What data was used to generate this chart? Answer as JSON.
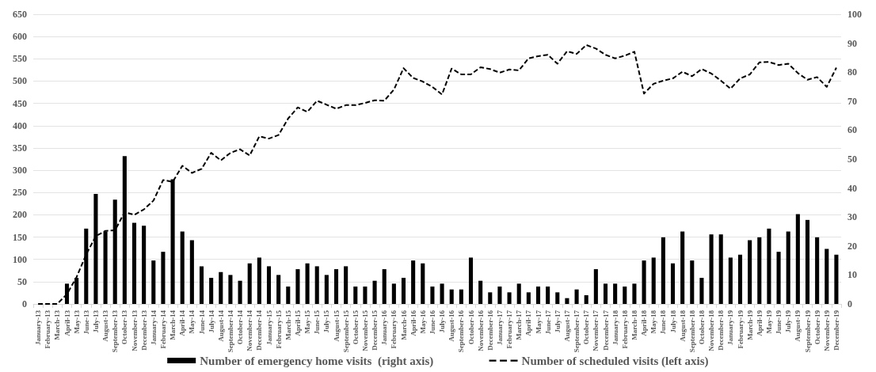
{
  "chart_data": {
    "type": "bar",
    "categories": [
      "January-13",
      "February-13",
      "March-13",
      "April-13",
      "May-13",
      "June-13",
      "July-13",
      "August-13",
      "September-13",
      "October-13",
      "November-13",
      "December-13",
      "January-14",
      "February-14",
      "March-14",
      "April-14",
      "May-14",
      "June-14",
      "July-14",
      "August-14",
      "September-14",
      "October-14",
      "November-14",
      "December-14",
      "January-15",
      "February-15",
      "March-15",
      "April-15",
      "May-15",
      "June-15",
      "July-15",
      "August-15",
      "September-15",
      "October-15",
      "November-15",
      "December-15",
      "January-16",
      "February-16",
      "March-16",
      "April-16",
      "May-16",
      "June-16",
      "July-16",
      "August-16",
      "September-16",
      "October-16",
      "November-16",
      "December-16",
      "January-17",
      "February-17",
      "March-17",
      "April-17",
      "May-17",
      "June-17",
      "July-17",
      "August-17",
      "September-17",
      "October-17",
      "November-17",
      "December-17",
      "January-18",
      "February-18",
      "March-18",
      "April-18",
      "May-18",
      "June-18",
      "July-18",
      "August-18",
      "September-18",
      "October-18",
      "November-18",
      "December-18",
      "January-19",
      "February-19",
      "March-19",
      "April-19",
      "May-19",
      "June-19",
      "July-19",
      "August-19",
      "September-19",
      "October-19",
      "November-19",
      "December-19"
    ],
    "series": [
      {
        "name": "Number of emergency home visits  (right axis)",
        "axis": "y2",
        "color": "#000000",
        "values": [
          0,
          0,
          0,
          7,
          9,
          26,
          38,
          25,
          36,
          51,
          28,
          27,
          15,
          18,
          43,
          25,
          22,
          13,
          9,
          11,
          10,
          8,
          14,
          16,
          13,
          10,
          6,
          12,
          14,
          13,
          10,
          12,
          13,
          6,
          6,
          8,
          12,
          7,
          9,
          15,
          14,
          6,
          7,
          5,
          5,
          16,
          8,
          4,
          6,
          4,
          7,
          4,
          6,
          6,
          4,
          2,
          5,
          3,
          12,
          7,
          7,
          6,
          7,
          15,
          16,
          23,
          14,
          25,
          15,
          9,
          24,
          24,
          16,
          17,
          22,
          23,
          26,
          18,
          25,
          31,
          29,
          23,
          19,
          17
        ]
      },
      {
        "name": "Number of scheduled visits (left axis)",
        "type": "line",
        "line_style": "dashed",
        "color": "#000000",
        "values": [
          0,
          0,
          0,
          22,
          60,
          111,
          152,
          164,
          165,
          206,
          200,
          212,
          232,
          278,
          274,
          310,
          294,
          303,
          339,
          322,
          339,
          347,
          333,
          376,
          371,
          379,
          416,
          441,
          431,
          456,
          447,
          438,
          446,
          446,
          451,
          457,
          456,
          481,
          529,
          507,
          499,
          487,
          470,
          528,
          515,
          515,
          531,
          527,
          519,
          526,
          524,
          551,
          556,
          559,
          539,
          567,
          561,
          581,
          573,
          559,
          551,
          557,
          566,
          472,
          494,
          501,
          506,
          521,
          511,
          527,
          517,
          501,
          483,
          506,
          515,
          542,
          543,
          536,
          539,
          518,
          503,
          509,
          487,
          530
        ]
      }
    ],
    "ylim": [
      0,
      650
    ],
    "yticks": [
      0,
      50,
      100,
      150,
      200,
      250,
      300,
      350,
      400,
      450,
      500,
      550,
      600,
      650
    ],
    "y2lim": [
      0,
      100
    ],
    "y2ticks": [
      0,
      10,
      20,
      30,
      40,
      50,
      60,
      70,
      80,
      90,
      100
    ],
    "grid": "y",
    "legend": "bottom",
    "marker": "none"
  }
}
